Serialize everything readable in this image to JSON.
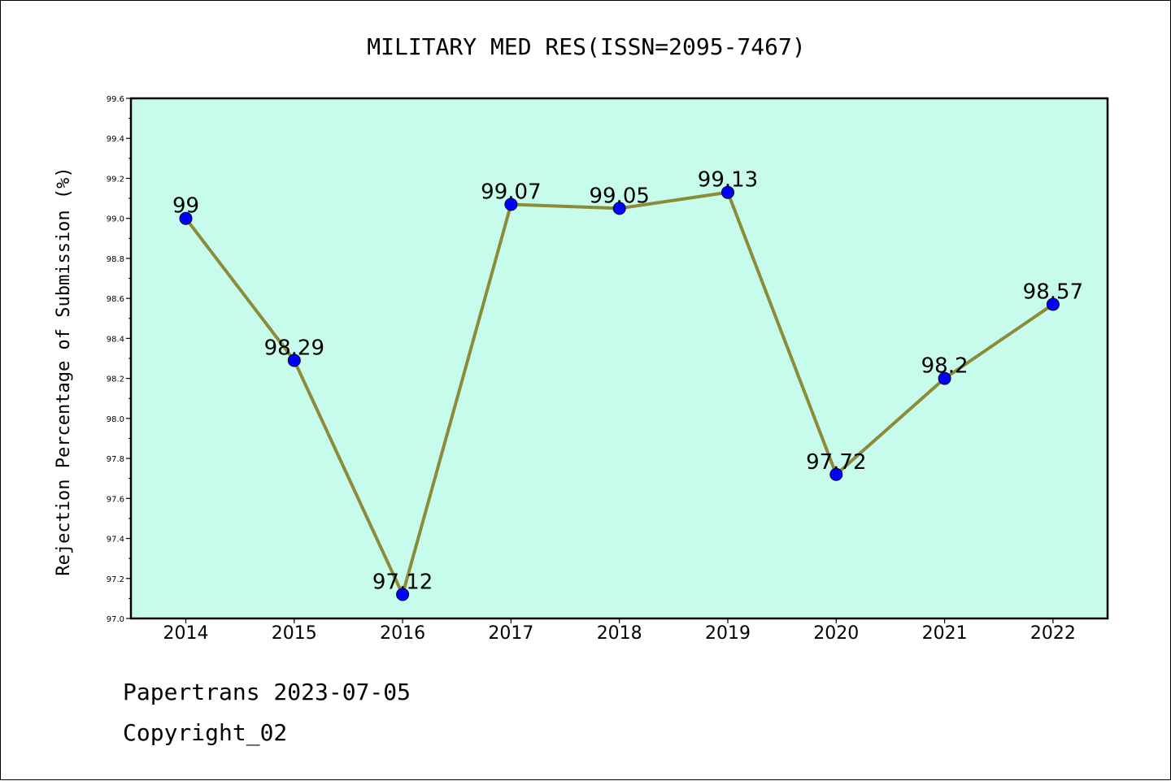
{
  "chart_data": {
    "type": "line",
    "title": "MILITARY MED RES(ISSN=2095-7467)",
    "xlabel": "",
    "ylabel": "Rejection Percentage of Submission (%)",
    "categories": [
      "2014",
      "2015",
      "2016",
      "2017",
      "2018",
      "2019",
      "2020",
      "2021",
      "2022"
    ],
    "series": [
      {
        "values": [
          99,
          98.29,
          97.12,
          99.07,
          99.05,
          99.13,
          97.72,
          98.2,
          98.57
        ],
        "labels": [
          "99",
          "98.29",
          "97.12",
          "99.07",
          "99.05",
          "99.13",
          "97.72",
          "98.2",
          "98.57"
        ]
      }
    ],
    "ylim": [
      97.0,
      99.6
    ],
    "yticks": [
      "97.0",
      "97.2",
      "97.4",
      "97.6",
      "97.8",
      "98.0",
      "98.2",
      "98.4",
      "98.6",
      "98.8",
      "99.0",
      "99.2",
      "99.4",
      "99.6"
    ],
    "grid": false,
    "colors": {
      "plot_background": "#c7fcec",
      "line": "#8b8b3a",
      "marker": "#0000ff"
    }
  },
  "footer": {
    "line1": "Papertrans 2023-07-05",
    "line2": "Copyright_02"
  }
}
